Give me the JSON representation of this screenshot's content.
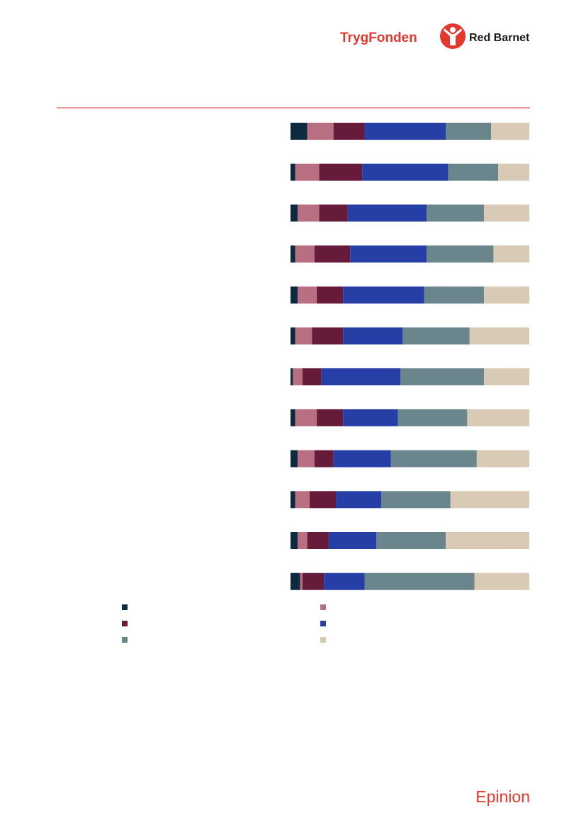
{
  "header": {
    "logos": [
      "TrygFonden",
      "Red Barnet"
    ]
  },
  "footer": {
    "logo": "Epinion"
  },
  "chart_data": {
    "type": "stacked-bar-horizontal",
    "categories": [
      null,
      null,
      null,
      null,
      null,
      null,
      null,
      null,
      null,
      null,
      null,
      null
    ],
    "xlim": [
      0,
      100
    ],
    "series": [
      {
        "color": "#0e2a3f",
        "values": [
          7,
          2,
          3,
          2,
          3,
          2,
          1,
          2,
          3,
          2,
          3,
          4
        ]
      },
      {
        "color": "#b96f82",
        "values": [
          11,
          10,
          9,
          8,
          8,
          7,
          4,
          9,
          7,
          6,
          4,
          1
        ]
      },
      {
        "color": "#661b3a",
        "values": [
          13,
          18,
          12,
          15,
          11,
          13,
          8,
          11,
          8,
          11,
          9,
          9
        ]
      },
      {
        "color": "#253fa6",
        "values": [
          34,
          36,
          33,
          32,
          34,
          25,
          33,
          23,
          24,
          19,
          20,
          17
        ]
      },
      {
        "color": "#6a858b",
        "values": [
          19,
          21,
          24,
          28,
          25,
          28,
          35,
          29,
          36,
          29,
          29,
          46
        ]
      },
      {
        "color": "#d8cab5",
        "values": [
          16,
          13,
          19,
          15,
          19,
          25,
          19,
          26,
          22,
          33,
          35,
          23
        ]
      }
    ]
  }
}
